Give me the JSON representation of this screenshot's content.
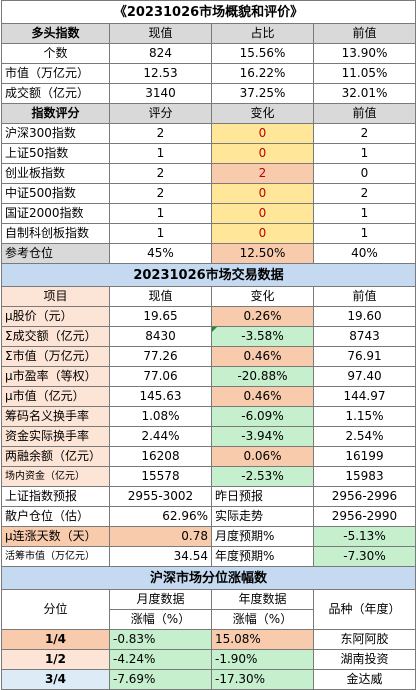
{
  "title": "《20231026市场概貌和评价》",
  "bull": {
    "headers": [
      "多头指数",
      "现值",
      "占比",
      "前值"
    ],
    "rows": [
      [
        "个数",
        "824",
        "15.56%",
        "13.90%"
      ],
      [
        "市值（万亿元）",
        "12.53",
        "16.22%",
        "11.05%"
      ],
      [
        "成交额（亿元）",
        "3140",
        "37.25%",
        "32.01%"
      ]
    ]
  },
  "score": {
    "headers": [
      "指数评分",
      "评分",
      "变化",
      "前值"
    ],
    "rows": [
      [
        "沪深300指数",
        "2",
        "0",
        "2"
      ],
      [
        "上证50指数",
        "1",
        "0",
        "1"
      ],
      [
        "创业板指数",
        "2",
        "2",
        "0"
      ],
      [
        "中证500指数",
        "2",
        "0",
        "2"
      ],
      [
        "国证2000指数",
        "1",
        "0",
        "1"
      ],
      [
        "自制科创板指数",
        "1",
        "0",
        "1"
      ],
      [
        "参考仓位",
        "45%",
        "12.50%",
        "40%"
      ]
    ]
  },
  "trade": {
    "section_title": "20231026市场交易数据",
    "headers": [
      "项目",
      "现值",
      "变化",
      "前值"
    ],
    "rows": [
      [
        "μ股价（元）",
        "19.65",
        "0.26%",
        "19.60"
      ],
      [
        "Σ成交额（亿元）",
        "8430",
        "-3.58%",
        "8743"
      ],
      [
        "Σ市值（万亿元）",
        "77.26",
        "0.46%",
        "76.91"
      ],
      [
        "μ市盈率（等权）",
        "77.06",
        "-20.88%",
        "97.40"
      ],
      [
        "μ市值（亿元）",
        "145.63",
        "0.46%",
        "144.97"
      ],
      [
        "筹码名义换手率",
        "1.08%",
        "-6.09%",
        "1.15%"
      ],
      [
        "资金实际换手率",
        "2.44%",
        "-3.94%",
        "2.54%"
      ],
      [
        "两融余额（亿元）",
        "16208",
        "0.06%",
        "16199"
      ],
      [
        "场内资金（亿元）",
        "15578",
        "-2.53%",
        "15983"
      ]
    ],
    "extra": [
      [
        "上证指数预报",
        "2955-3002",
        "昨日预报",
        "2956-2996"
      ],
      [
        "散户仓位（估）",
        "62.96%",
        "实际走势",
        "2956-2990"
      ],
      [
        "μ连涨天数（天）",
        "0.78",
        "月度预期%",
        "-5.13%"
      ],
      [
        "活筹市值（万亿元）",
        "34.54",
        "年度预期%",
        "-7.30%"
      ]
    ]
  },
  "dist": {
    "section_title": "沪深市场分位涨幅数",
    "header_row1": [
      "分位",
      "月度数据",
      "年度数据",
      "品种（年度）"
    ],
    "header_row2": [
      "涨幅（%）",
      "涨幅（%）"
    ],
    "rows": [
      [
        "1/4",
        "-0.83%",
        "15.08%",
        "东阿阿胶"
      ],
      [
        "1/2",
        "-4.24%",
        "-1.90%",
        "湖南投资"
      ],
      [
        "3/4",
        "-7.69%",
        "-17.30%",
        "金达威"
      ]
    ]
  }
}
